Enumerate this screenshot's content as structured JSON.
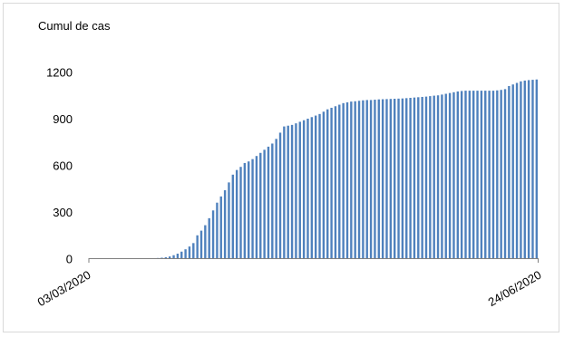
{
  "chart_data": {
    "type": "bar",
    "title": "",
    "ylabel": "Cumul de cas",
    "xlabel": "",
    "x_start_label": "03/03/2020",
    "x_end_label": "24/06/2020",
    "ylim": [
      0,
      1200
    ],
    "yticks": [
      0,
      300,
      600,
      900,
      1200
    ],
    "grid": false,
    "legend": "none",
    "bar_color": "#4f81bd",
    "series": [
      {
        "values": [
          0,
          0,
          0,
          0,
          0,
          0,
          0,
          0,
          0,
          0,
          0,
          0,
          0,
          0,
          0,
          1,
          2,
          4,
          6,
          9,
          14,
          22,
          32,
          45,
          60,
          78,
          100,
          150,
          180,
          215,
          260,
          310,
          360,
          400,
          440,
          490,
          540,
          570,
          590,
          615,
          625,
          640,
          660,
          680,
          700,
          720,
          740,
          770,
          810,
          850,
          855,
          860,
          870,
          880,
          890,
          900,
          910,
          920,
          930,
          945,
          960,
          970,
          980,
          990,
          1000,
          1005,
          1010,
          1012,
          1015,
          1018,
          1020,
          1020,
          1022,
          1024,
          1025,
          1026,
          1027,
          1028,
          1029,
          1030,
          1032,
          1034,
          1036,
          1038,
          1040,
          1042,
          1045,
          1048,
          1050,
          1055,
          1060,
          1065,
          1070,
          1075,
          1078,
          1080,
          1080,
          1080,
          1080,
          1080,
          1080,
          1080,
          1080,
          1082,
          1085,
          1090,
          1110,
          1120,
          1130,
          1140,
          1145,
          1148,
          1150,
          1152
        ]
      }
    ]
  }
}
